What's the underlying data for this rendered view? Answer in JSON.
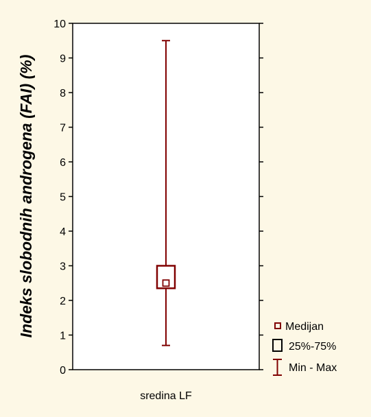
{
  "chart_data": {
    "type": "boxplot",
    "categories": [
      "sredina LF"
    ],
    "ylabel": "Indeks slobodnih androgena (FAI) (%)",
    "ylim": [
      0,
      10
    ],
    "y_ticks": [
      "0",
      "1",
      "2",
      "3",
      "4",
      "5",
      "6",
      "7",
      "8",
      "9",
      "10"
    ],
    "grid": false,
    "series": [
      {
        "category": "sredina LF",
        "median": 2.5,
        "q1": 2.35,
        "q3": 3.0,
        "min": 0.7,
        "max": 9.5
      }
    ],
    "legend": {
      "placement": "bottom-right",
      "items": [
        {
          "symbol": "median",
          "label": "Medijan"
        },
        {
          "symbol": "box",
          "label": "25%-75%"
        },
        {
          "symbol": "whisker",
          "label": "Min - Max"
        }
      ]
    },
    "colors": {
      "background": "#fdf8e6",
      "plot_area": "#ffffff",
      "series": "#800000",
      "axis": "#000000"
    }
  }
}
